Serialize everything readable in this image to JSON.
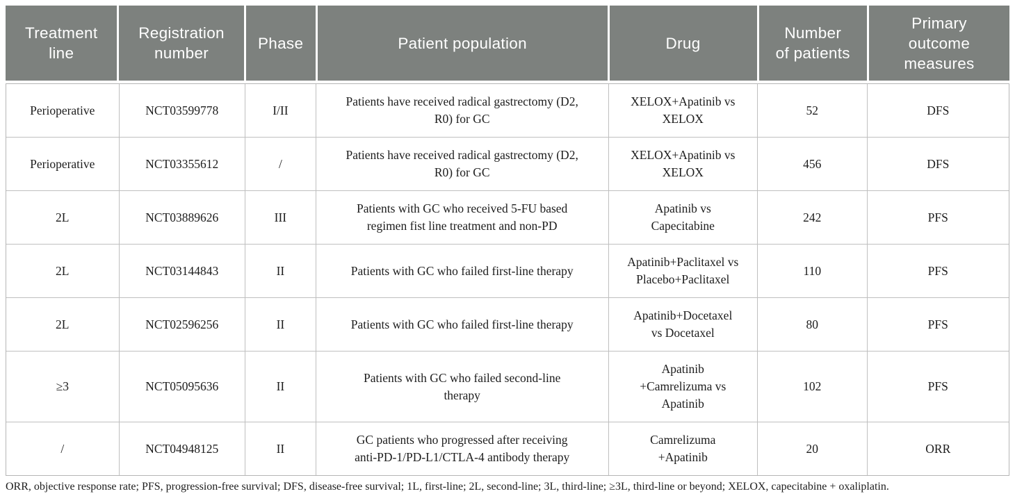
{
  "colors": {
    "header_bg": "#7d817e",
    "header_text": "#ffffff",
    "body_text": "#1d1d1d",
    "grid_line": "#bfbfbf"
  },
  "table": {
    "header": [
      "Treatment\nline",
      "Registration\nnumber",
      "Phase",
      "Patient population",
      "Drug",
      "Number\nof patients",
      "Primary\noutcome\nmeasures"
    ],
    "rows": [
      [
        "Perioperative",
        "NCT03599778",
        "I/II",
        "Patients have received radical gastrectomy (D2,\nR0) for GC",
        "XELOX+Apatinib vs\nXELOX",
        "52",
        "DFS"
      ],
      [
        "Perioperative",
        "NCT03355612",
        "/",
        "Patients have received radical gastrectomy (D2,\nR0) for GC",
        "XELOX+Apatinib vs\nXELOX",
        "456",
        "DFS"
      ],
      [
        "2L",
        "NCT03889626",
        "III",
        "Patients with GC who received 5-FU based\nregimen fist line treatment and non-PD",
        "Apatinib vs\nCapecitabine",
        "242",
        "PFS"
      ],
      [
        "2L",
        "NCT03144843",
        "II",
        "Patients with GC who failed first-line therapy",
        "Apatinib+Paclitaxel vs\nPlacebo+Paclitaxel",
        "110",
        "PFS"
      ],
      [
        "2L",
        "NCT02596256",
        "II",
        "Patients with GC who failed first-line therapy",
        "Apatinib+Docetaxel\nvs Docetaxel",
        "80",
        "PFS"
      ],
      [
        "≥3",
        "NCT05095636",
        "II",
        "Patients with GC who failed second-line\ntherapy",
        "Apatinib\n+Camrelizuma vs\nApatinib",
        "102",
        "PFS"
      ],
      [
        "/",
        "NCT04948125",
        "II",
        "GC patients who progressed after receiving\nanti-PD-1/PD-L1/CTLA-4 antibody therapy",
        "Camrelizuma\n+Apatinib",
        "20",
        "ORR"
      ]
    ]
  },
  "footnote": "ORR, objective response rate; PFS, progression-free survival; DFS, disease-free survival; 1L, first-line; 2L, second-line; 3L, third-line; ≥3L, third-line or beyond; XELOX, capecitabine + oxaliplatin."
}
